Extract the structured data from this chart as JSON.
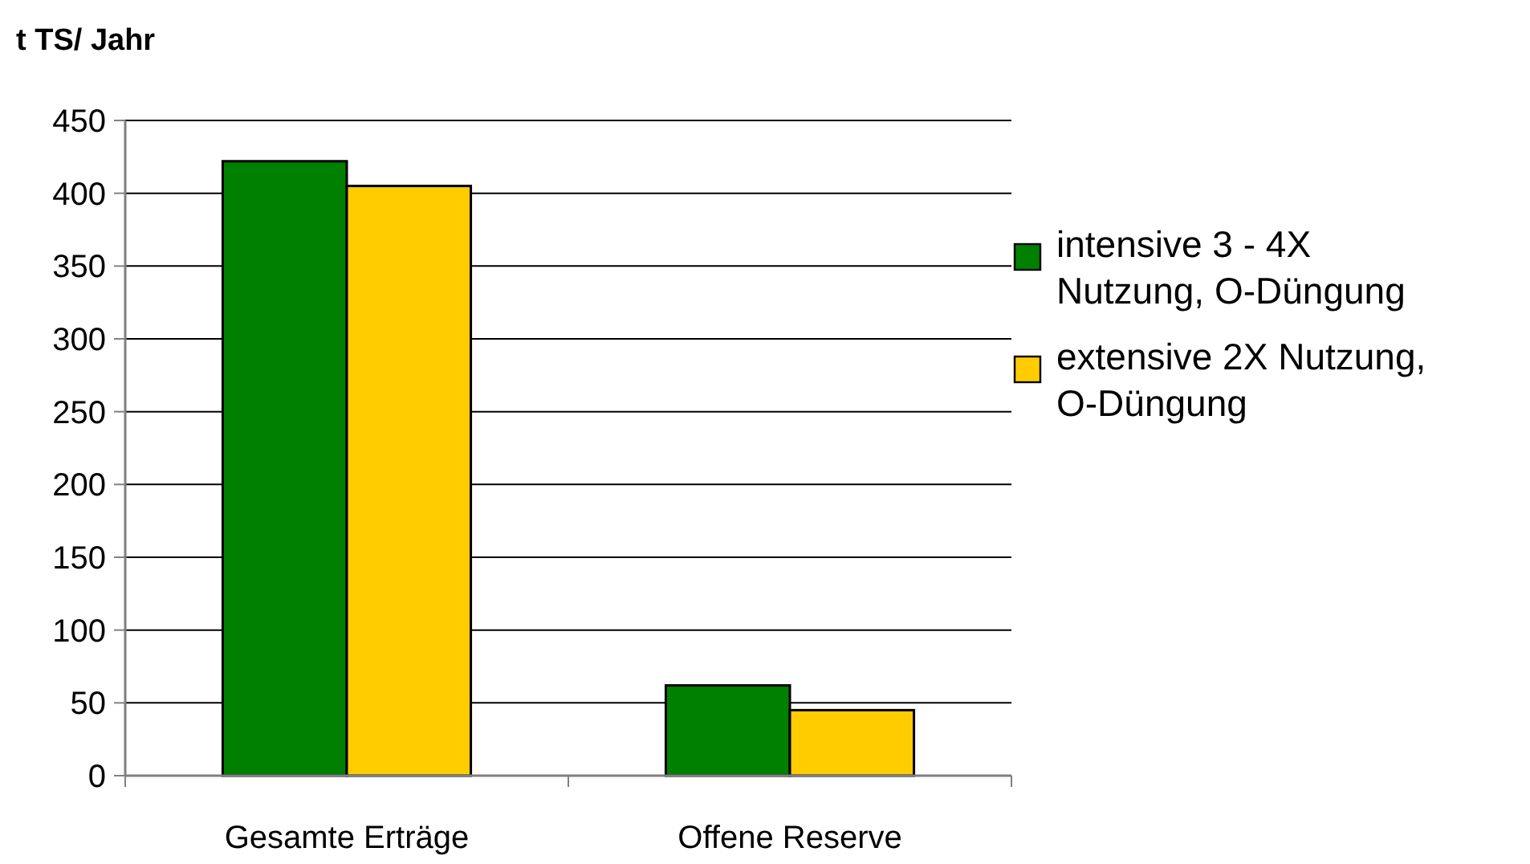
{
  "chart_data": {
    "type": "bar",
    "ylabel": "t TS/ Jahr",
    "categories": [
      "Gesamte Erträge",
      "Offene Reserve"
    ],
    "series": [
      {
        "name": "intensive 3 - 4X Nutzung, O-Düngung",
        "color": "#008000",
        "values": [
          422,
          62
        ]
      },
      {
        "name": "extensive 2X Nutzung, O-Düngung",
        "color": "#ffcc00",
        "values": [
          405,
          45
        ]
      }
    ],
    "ylim": [
      0,
      450
    ],
    "yticks": [
      0,
      50,
      100,
      150,
      200,
      250,
      300,
      350,
      400,
      450
    ],
    "grid": "y",
    "legend": "right"
  }
}
